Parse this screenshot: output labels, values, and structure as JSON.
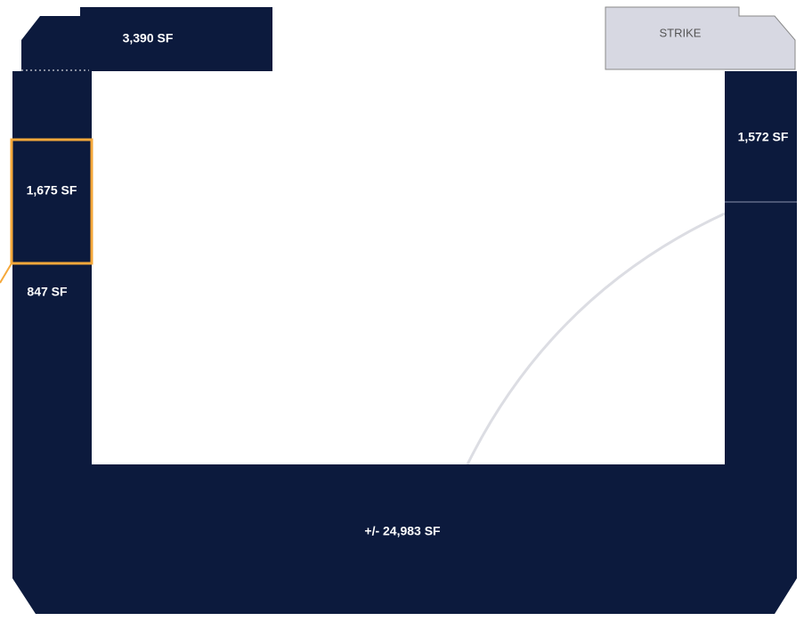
{
  "units": [
    {
      "label": "3,390 SF"
    },
    {
      "label": "STRIKE"
    },
    {
      "label": "1,572 SF"
    },
    {
      "label": "1,675 SF"
    },
    {
      "label": "847 SF"
    },
    {
      "label": "+/- 24,983 SF"
    }
  ]
}
